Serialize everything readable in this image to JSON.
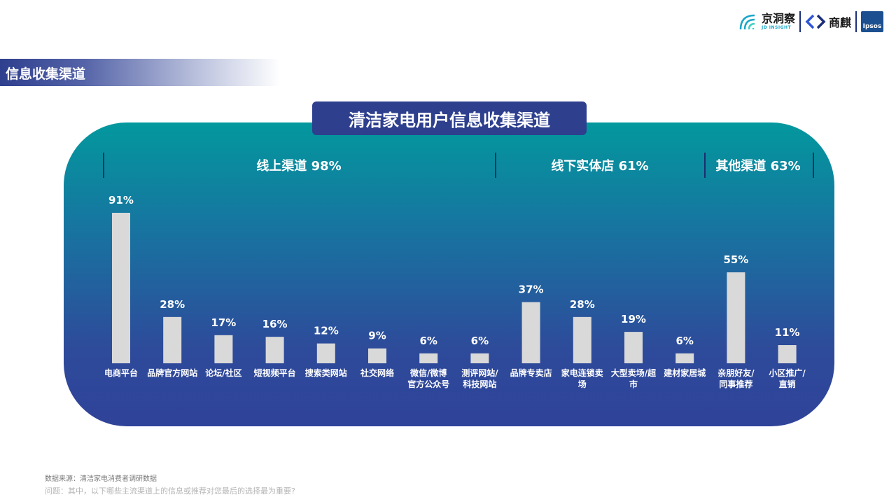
{
  "logos": {
    "jd_name": "京洞察",
    "jd_sub": "JD INSIGHT",
    "shangqi_name": "商麒",
    "ipsos_name": "Ipsos"
  },
  "section_title": "信息收集渠道",
  "chart_data": {
    "type": "bar",
    "title": "清洁家电用户信息收集渠道",
    "groups": [
      {
        "label": "线上渠道 98%"
      },
      {
        "label": "线下实体店 61%"
      },
      {
        "label": "其他渠道 63%"
      }
    ],
    "categories": [
      [
        "电商平台"
      ],
      [
        "品牌官方网站"
      ],
      [
        "论坛/社区"
      ],
      [
        "短视频平台"
      ],
      [
        "搜索类网站"
      ],
      [
        "社交网络"
      ],
      [
        "微信/微博",
        "官方公众号"
      ],
      [
        "测评网站/",
        "科技网站"
      ],
      [
        "品牌专卖店"
      ],
      [
        "家电连锁卖",
        "场"
      ],
      [
        "大型卖场/超",
        "市"
      ],
      [
        "建材家居城"
      ],
      [
        "亲朋好友/",
        "同事推荐"
      ],
      [
        "小区推广/",
        "直销"
      ]
    ],
    "values": [
      91,
      28,
      17,
      16,
      12,
      9,
      6,
      6,
      37,
      28,
      19,
      6,
      55,
      11
    ],
    "value_labels": [
      "91%",
      "28%",
      "17%",
      "16%",
      "12%",
      "9%",
      "6%",
      "6%",
      "37%",
      "28%",
      "19%",
      "6%",
      "55%",
      "11%"
    ],
    "ylim": [
      0,
      100
    ],
    "bar_color": "#d9d9d9",
    "text_color": "#ffffff",
    "grid": false
  },
  "footer": {
    "source": "数据来源：清洁家电消费者调研数据",
    "question": "问题：其中，以下哪些主流渠道上的信息或推荐对您最后的选择最为重要?"
  },
  "colors": {
    "panel_top": "#03989e",
    "panel_bottom": "#2f4399",
    "navy": "#2e3f8e",
    "divider": "#1b2f6e"
  }
}
